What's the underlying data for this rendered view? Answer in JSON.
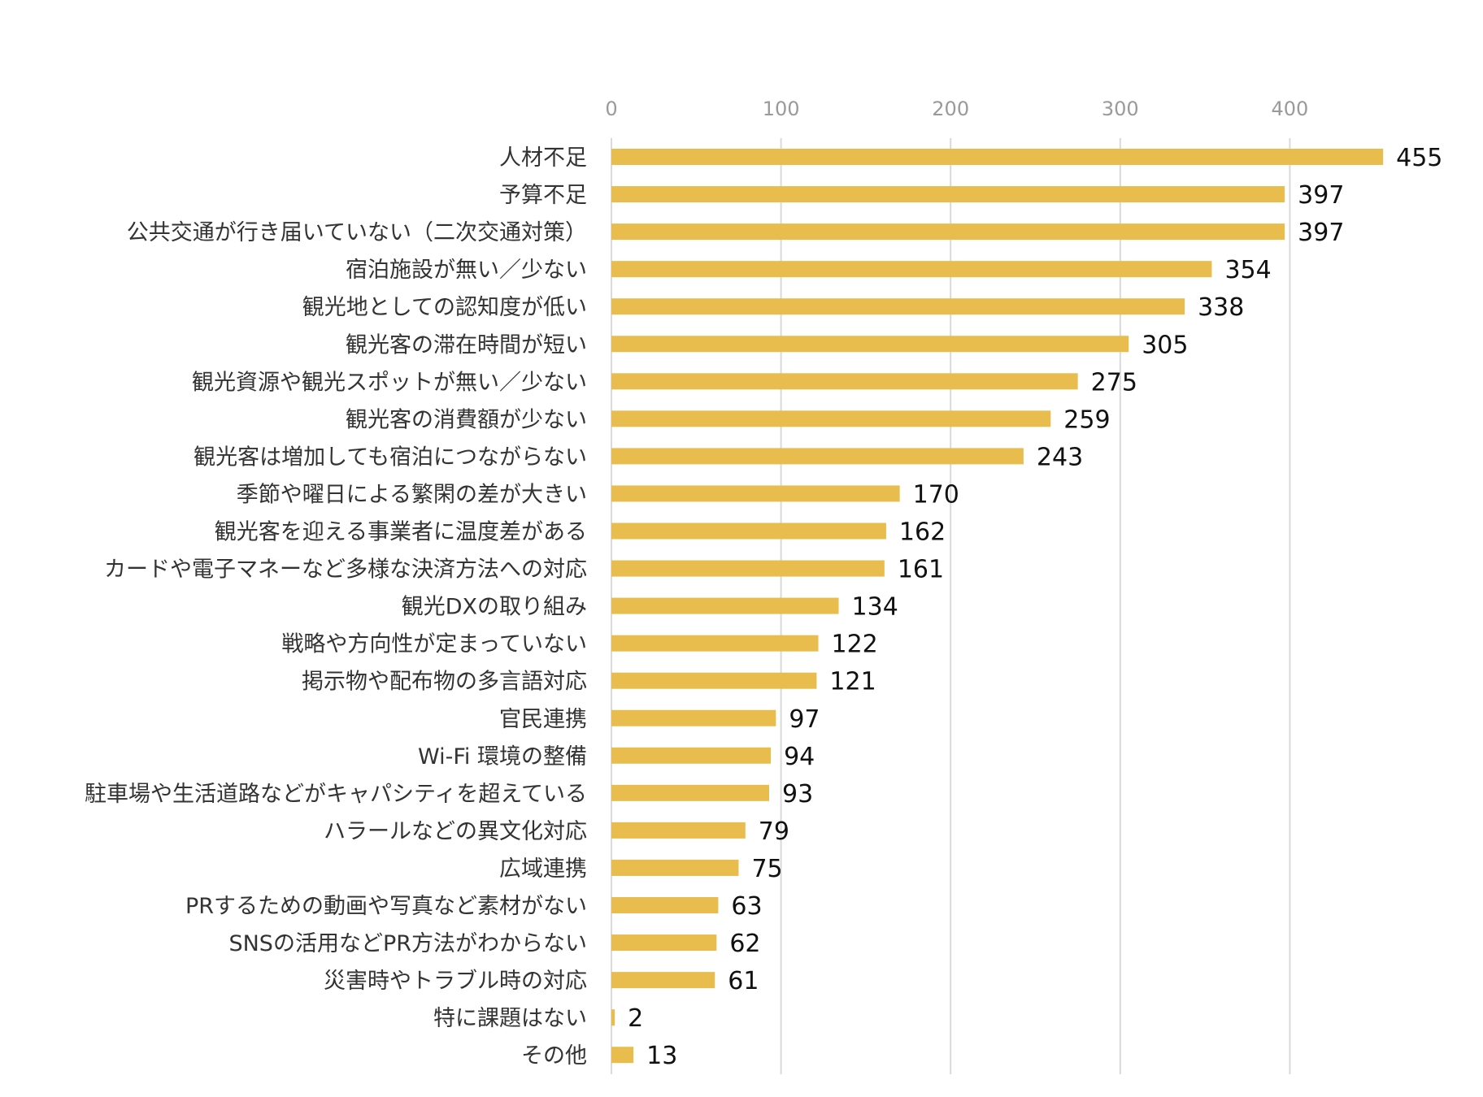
{
  "chart_data": {
    "type": "bar",
    "orientation": "horizontal",
    "title": "",
    "xlabel": "",
    "ylabel": "",
    "xlim": [
      0,
      460
    ],
    "ticks": [
      0,
      100,
      200,
      300,
      400
    ],
    "tick_position": "top",
    "grid": true,
    "bar_color": "#e8bd4d",
    "grid_color": "#d9d9d9",
    "categories": [
      "人材不足",
      "予算不足",
      "公共交通が行き届いていない（二次交通対策）",
      "宿泊施設が無い／少ない",
      "観光地としての認知度が低い",
      "観光客の滞在時間が短い",
      "観光資源や観光スポットが無い／少ない",
      "観光客の消費額が少ない",
      "観光客は増加しても宿泊につながらない",
      "季節や曜日による繁閑の差が大きい",
      "観光客を迎える事業者に温度差がある",
      "カードや電子マネーなど多様な決済方法への対応",
      "観光DXの取り組み",
      "戦略や方向性が定まっていない",
      "掲示物や配布物の多言語対応",
      "官民連携",
      "Wi-Fi 環境の整備",
      "駐車場や生活道路などがキャパシティを超えている",
      "ハラールなどの異文化対応",
      "広域連携",
      "PRするための動画や写真など素材がない",
      "SNSの活用などPR方法がわからない",
      "災害時やトラブル時の対応",
      "特に課題はない",
      "その他"
    ],
    "values": [
      455,
      397,
      397,
      354,
      338,
      305,
      275,
      259,
      243,
      170,
      162,
      161,
      134,
      122,
      121,
      97,
      94,
      93,
      79,
      75,
      63,
      62,
      61,
      2,
      13
    ]
  }
}
